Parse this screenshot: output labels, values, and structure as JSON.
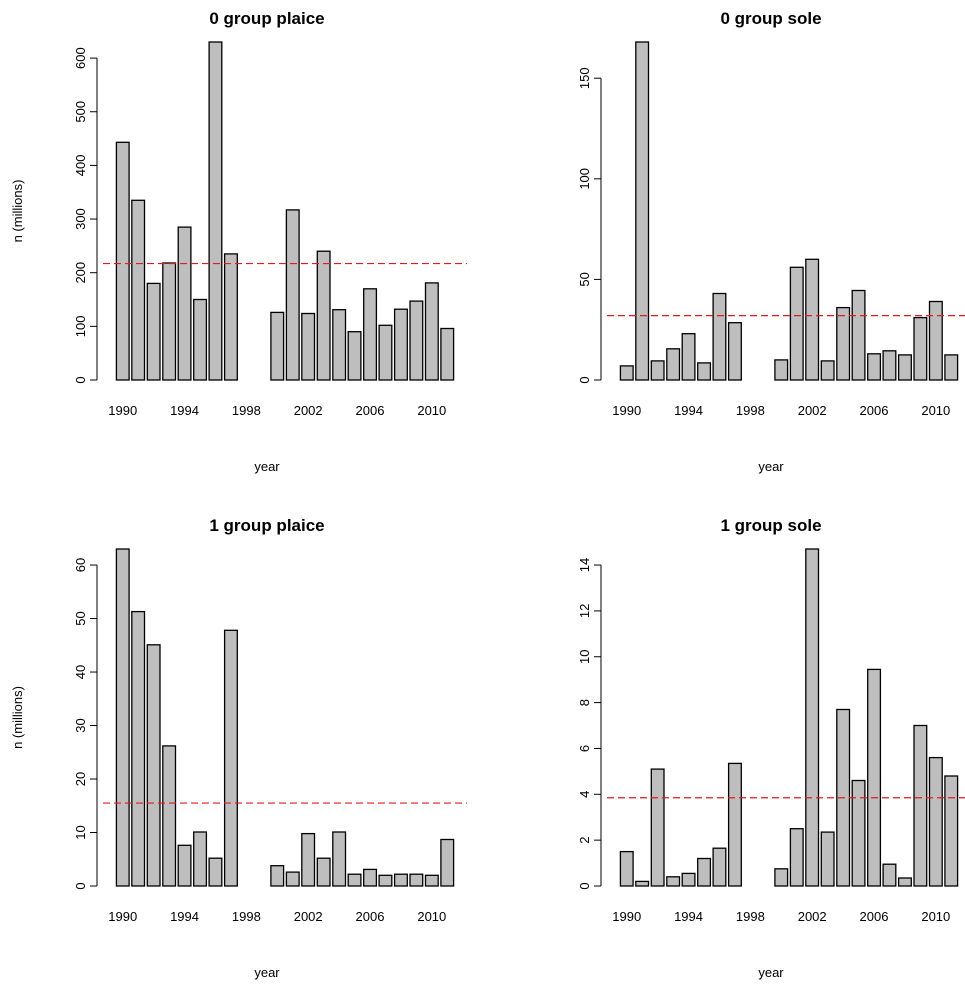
{
  "chart_data": [
    {
      "type": "bar",
      "title": "0 group plaice",
      "xlabel": "year",
      "ylabel": "n (millions)",
      "categories": [
        "1990",
        "1991",
        "1992",
        "1993",
        "1994",
        "1995",
        "1996",
        "1997",
        "1998",
        "1999",
        "2000",
        "2001",
        "2002",
        "2003",
        "2004",
        "2005",
        "2006",
        "2007",
        "2008",
        "2009",
        "2010",
        "2011"
      ],
      "values": [
        443,
        335,
        180,
        218,
        285,
        150,
        630,
        235,
        0,
        0,
        126,
        317,
        124,
        240,
        131,
        90,
        170,
        102,
        132,
        147,
        181,
        96
      ],
      "x_tick_labels": [
        "1990",
        "1994",
        "1998",
        "2002",
        "2006",
        "2010"
      ],
      "y_ticks": [
        0,
        100,
        200,
        300,
        400,
        500,
        600
      ],
      "ylim": [
        0,
        630
      ],
      "reference_line": 217,
      "grid": false,
      "bar_color": "#bebebe",
      "line_color": "#e31a1c"
    },
    {
      "type": "bar",
      "title": "0 group sole",
      "xlabel": "year",
      "ylabel": "",
      "categories": [
        "1990",
        "1991",
        "1992",
        "1993",
        "1994",
        "1995",
        "1996",
        "1997",
        "1998",
        "1999",
        "2000",
        "2001",
        "2002",
        "2003",
        "2004",
        "2005",
        "2006",
        "2007",
        "2008",
        "2009",
        "2010",
        "2011"
      ],
      "values": [
        7,
        168,
        9.5,
        15.5,
        23,
        8.5,
        43,
        28.5,
        0,
        0,
        10,
        56,
        60,
        9.5,
        36,
        44.5,
        13,
        14.5,
        12.5,
        31,
        39,
        12.5
      ],
      "x_tick_labels": [
        "1990",
        "1994",
        "1998",
        "2002",
        "2006",
        "2010"
      ],
      "y_ticks": [
        0,
        50,
        100,
        150
      ],
      "ylim": [
        0,
        168
      ],
      "reference_line": 32,
      "grid": false,
      "bar_color": "#bebebe",
      "line_color": "#e31a1c"
    },
    {
      "type": "bar",
      "title": "1 group plaice",
      "xlabel": "year",
      "ylabel": "n (millions)",
      "categories": [
        "1990",
        "1991",
        "1992",
        "1993",
        "1994",
        "1995",
        "1996",
        "1997",
        "1998",
        "1999",
        "2000",
        "2001",
        "2002",
        "2003",
        "2004",
        "2005",
        "2006",
        "2007",
        "2008",
        "2009",
        "2010",
        "2011"
      ],
      "values": [
        63,
        51.3,
        45.1,
        26.2,
        7.6,
        10.1,
        5.2,
        47.8,
        0,
        0,
        3.8,
        2.6,
        9.8,
        5.2,
        10.1,
        2.2,
        3.1,
        2.0,
        2.2,
        2.2,
        2.0,
        8.7
      ],
      "x_tick_labels": [
        "1990",
        "1994",
        "1998",
        "2002",
        "2006",
        "2010"
      ],
      "y_ticks": [
        0,
        10,
        20,
        30,
        40,
        50,
        60
      ],
      "ylim": [
        0,
        63
      ],
      "reference_line": 15.5,
      "grid": false,
      "bar_color": "#bebebe",
      "line_color": "#e31a1c"
    },
    {
      "type": "bar",
      "title": "1 group sole",
      "xlabel": "year",
      "ylabel": "",
      "categories": [
        "1990",
        "1991",
        "1992",
        "1993",
        "1994",
        "1995",
        "1996",
        "1997",
        "1998",
        "1999",
        "2000",
        "2001",
        "2002",
        "2003",
        "2004",
        "2005",
        "2006",
        "2007",
        "2008",
        "2009",
        "2010",
        "2011"
      ],
      "values": [
        1.5,
        0.2,
        5.1,
        0.4,
        0.55,
        1.2,
        1.65,
        5.35,
        0,
        0,
        0.75,
        2.5,
        14.7,
        2.35,
        7.7,
        4.6,
        9.45,
        0.95,
        0.35,
        7.0,
        5.6,
        4.8
      ],
      "x_tick_labels": [
        "1990",
        "1994",
        "1998",
        "2002",
        "2006",
        "2010"
      ],
      "y_ticks": [
        0,
        2,
        4,
        6,
        8,
        10,
        12,
        14
      ],
      "ylim": [
        0,
        14.7
      ],
      "reference_line": 3.85,
      "grid": false,
      "bar_color": "#bebebe",
      "line_color": "#e31a1c"
    }
  ]
}
